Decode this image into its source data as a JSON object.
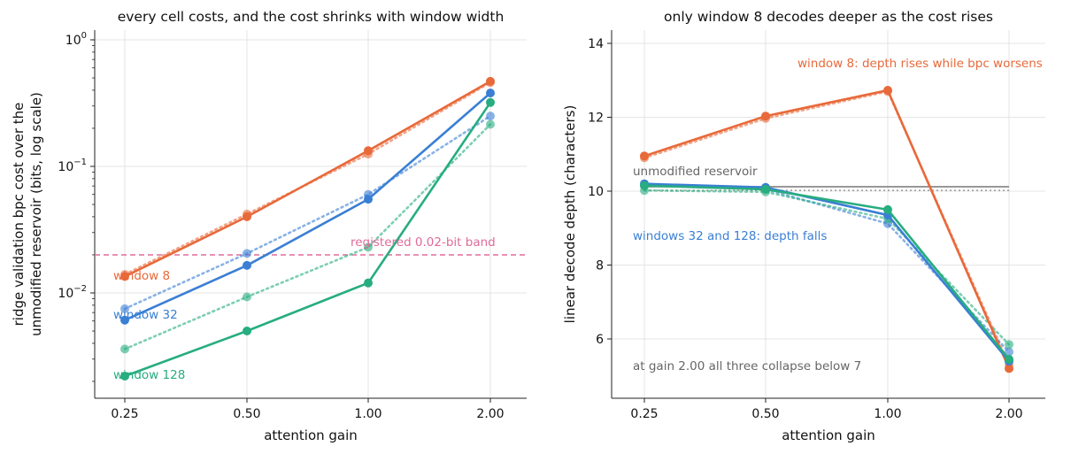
{
  "colors": {
    "window_8": "#e8693a",
    "window_32": "#3a7fd4",
    "window_128": "#27ad7f",
    "band": "#e06b9a",
    "reference": "#777777",
    "annotation_gray": "#666666"
  },
  "chart_data": [
    {
      "type": "line",
      "title": "every cell costs, and the cost shrinks with window width",
      "xlabel": "attention gain",
      "ylabel": "ridge validation bpc cost over the unmodified reservoir (bits, log scale)",
      "ylabel_lines": [
        "ridge validation bpc cost over the",
        "unmodified reservoir (bits, log scale)"
      ],
      "x_scale": "log2",
      "y_scale": "log10",
      "categories": [
        "0.25",
        "0.50",
        "1.00",
        "2.00"
      ],
      "x": [
        0.25,
        0.5,
        1.0,
        2.0
      ],
      "ylim": [
        0.0015,
        1.2
      ],
      "y_ticks": [
        {
          "value": 0.01,
          "base": "10",
          "exp": "−2"
        },
        {
          "value": 0.1,
          "base": "10",
          "exp": "−1"
        },
        {
          "value": 1,
          "base": "10",
          "exp": "0"
        }
      ],
      "grid": true,
      "series": [
        {
          "name": "window 8",
          "color": "#e8693a",
          "style": "solid",
          "values": [
            0.0135,
            0.04,
            0.133,
            0.47
          ]
        },
        {
          "name": "window 8",
          "color": "#e8693a",
          "style": "dotted",
          "values": [
            0.014,
            0.042,
            0.125,
            0.46
          ]
        },
        {
          "name": "window 32",
          "color": "#3a7fd4",
          "style": "solid",
          "values": [
            0.0061,
            0.0165,
            0.055,
            0.38
          ]
        },
        {
          "name": "window 32",
          "color": "#3a7fd4",
          "style": "dotted",
          "values": [
            0.0075,
            0.0205,
            0.06,
            0.25
          ]
        },
        {
          "name": "window 128",
          "color": "#27ad7f",
          "style": "solid",
          "values": [
            0.0022,
            0.005,
            0.012,
            0.32
          ]
        },
        {
          "name": "window 128",
          "color": "#27ad7f",
          "style": "dotted",
          "values": [
            0.0036,
            0.0093,
            0.023,
            0.215
          ]
        }
      ],
      "reference_line": {
        "value": 0.02,
        "label": "registered 0.02-bit band",
        "color": "#e06b9a"
      },
      "series_labels": [
        "window 8",
        "window 32",
        "window 128"
      ]
    },
    {
      "type": "line",
      "title": "only window 8 decodes deeper as the cost rises",
      "xlabel": "attention gain",
      "ylabel": "linear decode depth (characters)",
      "x_scale": "log2",
      "y_scale": "linear",
      "categories": [
        "0.25",
        "0.50",
        "1.00",
        "2.00"
      ],
      "x": [
        0.25,
        0.5,
        1.0,
        2.0
      ],
      "ylim": [
        4.4,
        14.4
      ],
      "y_ticks": [
        6,
        8,
        10,
        12,
        14
      ],
      "grid": true,
      "series": [
        {
          "name": "window 8",
          "color": "#e8693a",
          "style": "solid",
          "values": [
            10.95,
            12.03,
            12.73,
            5.2
          ]
        },
        {
          "name": "window 8",
          "color": "#e8693a",
          "style": "dotted",
          "values": [
            10.9,
            11.97,
            12.7,
            5.3
          ]
        },
        {
          "name": "window 32",
          "color": "#3a7fd4",
          "style": "solid",
          "values": [
            10.2,
            10.1,
            9.35,
            5.4
          ]
        },
        {
          "name": "window 32",
          "color": "#3a7fd4",
          "style": "dotted",
          "values": [
            10.15,
            10.05,
            9.12,
            5.65
          ]
        },
        {
          "name": "window 128",
          "color": "#27ad7f",
          "style": "solid",
          "values": [
            10.15,
            10.05,
            9.5,
            5.45
          ]
        },
        {
          "name": "window 128",
          "color": "#27ad7f",
          "style": "dotted",
          "values": [
            10.02,
            9.98,
            9.25,
            5.85
          ]
        }
      ],
      "reference_lines": [
        {
          "value": 10.12,
          "style": "solid",
          "color": "#777777"
        },
        {
          "value": 10.02,
          "style": "dotted",
          "color": "#999999"
        }
      ],
      "annotations": [
        {
          "text": "unmodified reservoir",
          "color": "#666666"
        },
        {
          "text": "window 8: depth rises while bpc worsens",
          "color": "#e8693a"
        },
        {
          "text": "windows 32 and 128: depth falls",
          "color": "#3a7fd4"
        },
        {
          "text": "at gain 2.00 all three collapse below 7",
          "color": "#666666"
        }
      ]
    }
  ]
}
